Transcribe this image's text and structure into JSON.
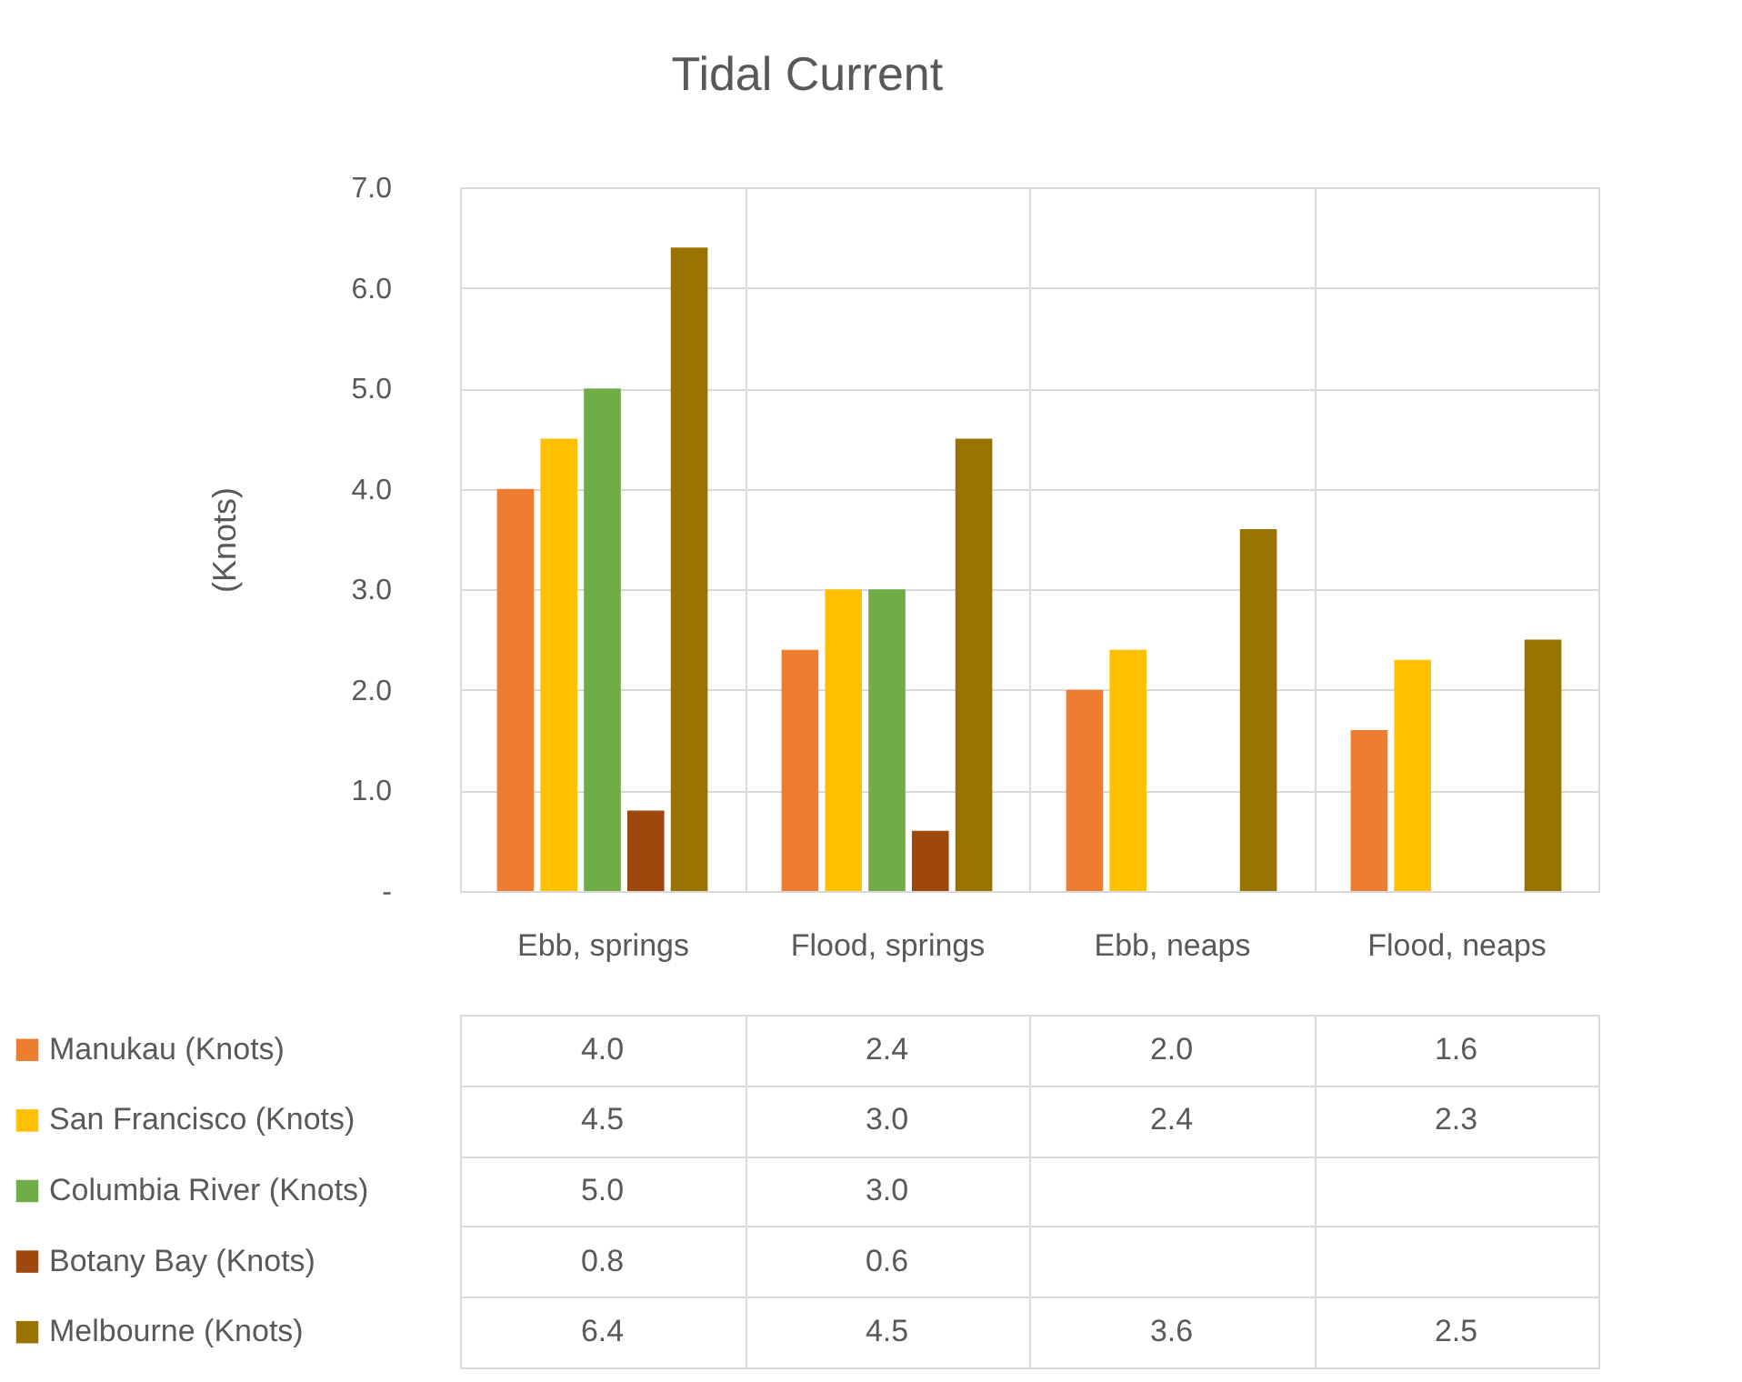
{
  "chart_data": {
    "type": "bar",
    "title": "Tidal Current",
    "ylabel": "(Knots)",
    "categories": [
      "Ebb, springs",
      "Flood, springs",
      "Ebb, neaps",
      "Flood, neaps"
    ],
    "series": [
      {
        "name": "Manukau (Knots)",
        "color": "#ed7d31",
        "values": [
          4.0,
          2.4,
          2.0,
          1.6
        ],
        "value_labels": [
          "4.0",
          "2.4",
          "2.0",
          "1.6"
        ]
      },
      {
        "name": "San Francisco (Knots)",
        "color": "#ffc000",
        "values": [
          4.5,
          3.0,
          2.4,
          2.3
        ],
        "value_labels": [
          "4.5",
          "3.0",
          "2.4",
          "2.3"
        ]
      },
      {
        "name": "Columbia River (Knots)",
        "color": "#70ad47",
        "values": [
          5.0,
          3.0,
          null,
          null
        ],
        "value_labels": [
          "5.0",
          "3.0",
          null,
          null
        ]
      },
      {
        "name": "Botany Bay (Knots)",
        "color": "#9e480e",
        "values": [
          0.8,
          0.6,
          null,
          null
        ],
        "value_labels": [
          "0.8",
          "0.6",
          null,
          null
        ]
      },
      {
        "name": "Melbourne (Knots)",
        "color": "#997300",
        "values": [
          6.4,
          4.5,
          3.6,
          2.5
        ],
        "value_labels": [
          "6.4",
          "4.5",
          "3.6",
          "2.5"
        ]
      }
    ],
    "ylim": [
      0,
      7
    ],
    "yticks": [
      {
        "value": 0,
        "label": "-"
      },
      {
        "value": 1,
        "label": "1.0"
      },
      {
        "value": 2,
        "label": "2.0"
      },
      {
        "value": 3,
        "label": "3.0"
      },
      {
        "value": 4,
        "label": "4.0"
      },
      {
        "value": 5,
        "label": "5.0"
      },
      {
        "value": 6,
        "label": "6.0"
      },
      {
        "value": 7,
        "label": "7.0"
      }
    ],
    "grid": true,
    "legend": "bottom left"
  }
}
